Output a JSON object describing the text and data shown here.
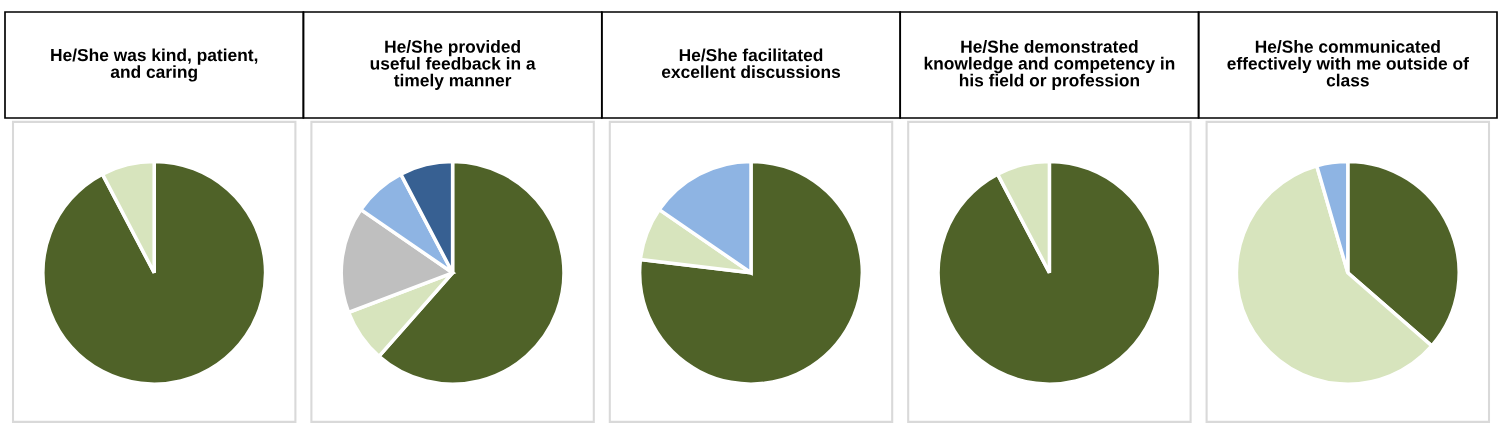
{
  "chart_data": [
    {
      "type": "pie",
      "title": "He/She was kind, patient,\nand caring",
      "categories": [
        null,
        null
      ],
      "values": [
        92.3,
        7.7
      ],
      "colors": [
        "#4f6228",
        "#d7e4bd"
      ]
    },
    {
      "type": "pie",
      "title": "He/She provided\nuseful feedback in a\ntimely manner",
      "categories": [
        null,
        null,
        null,
        null,
        null
      ],
      "values": [
        61.5,
        7.7,
        15.4,
        7.7,
        7.7
      ],
      "colors": [
        "#4f6228",
        "#d7e4bd",
        "#bfbfbf",
        "#8eb4e3",
        "#376092"
      ]
    },
    {
      "type": "pie",
      "title": "He/She facilitated\nexcellent discussions",
      "categories": [
        null,
        null,
        null
      ],
      "values": [
        76.9,
        7.7,
        15.4
      ],
      "colors": [
        "#4f6228",
        "#d7e4bd",
        "#8eb4e3"
      ]
    },
    {
      "type": "pie",
      "title": "He/She demonstrated\nknowledge and competency in\nhis field or profession",
      "categories": [
        null,
        null
      ],
      "values": [
        92.3,
        7.7
      ],
      "colors": [
        "#4f6228",
        "#d7e4bd"
      ]
    },
    {
      "type": "pie",
      "title": "He/She communicated\neffectively with me outside of\nclass",
      "categories": [
        null,
        null,
        null
      ],
      "values": [
        36.4,
        59.1,
        4.5
      ],
      "colors": [
        "#4f6228",
        "#d7e4bd",
        "#8eb4e3"
      ]
    }
  ]
}
